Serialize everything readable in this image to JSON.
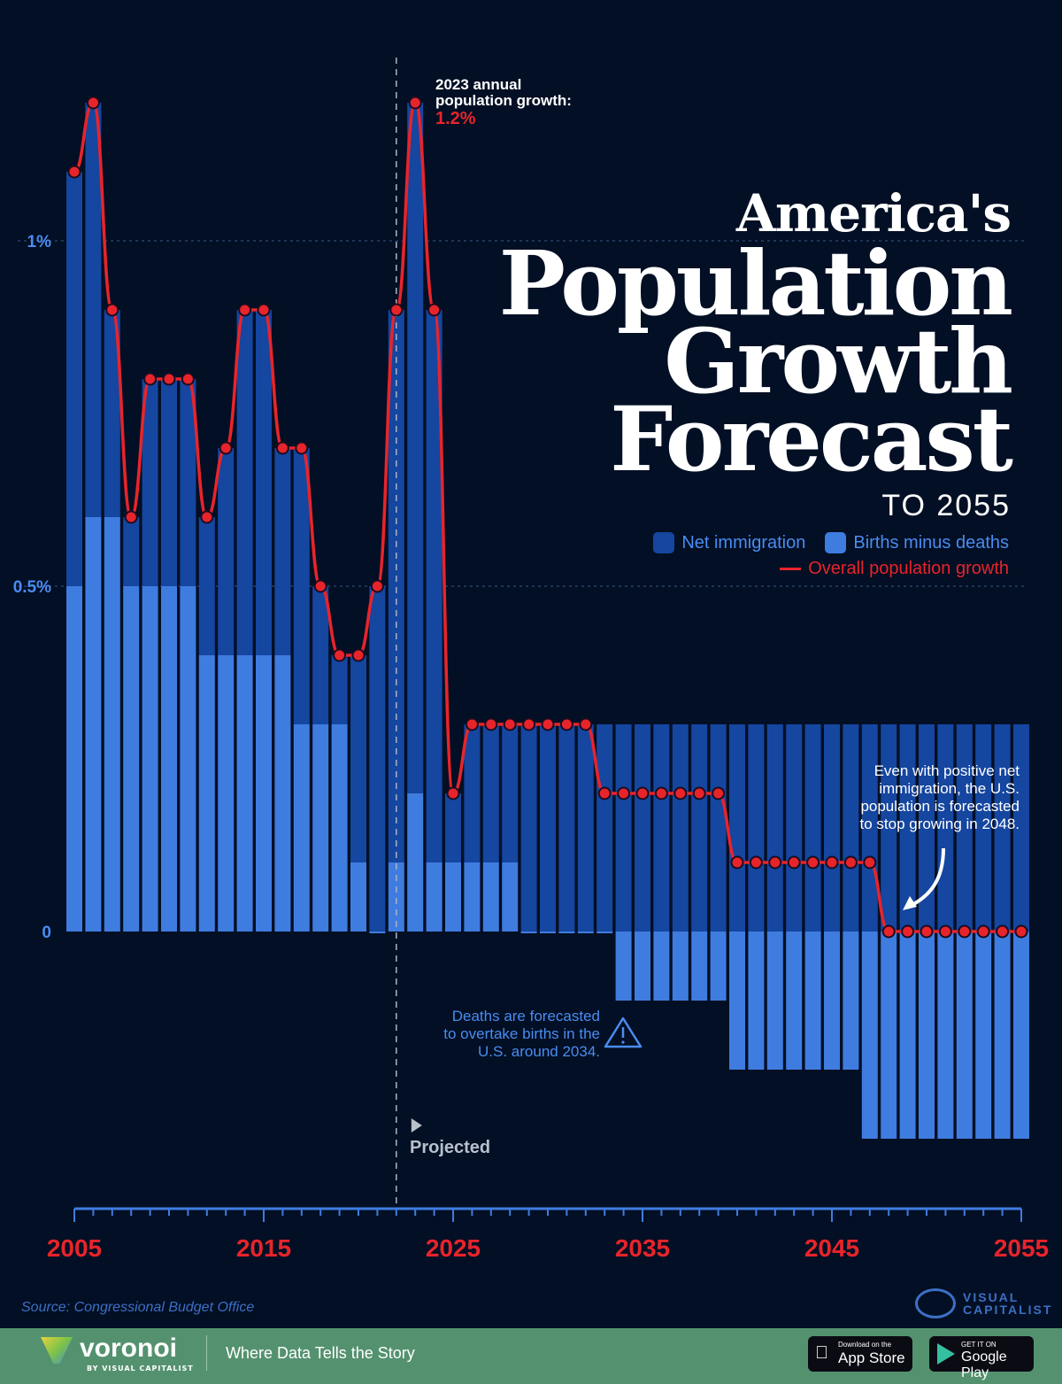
{
  "chart_data": {
    "type": "bar",
    "title": "America's Population Growth Forecast",
    "title_parts": [
      "America's",
      "Population",
      "Growth",
      "Forecast"
    ],
    "subtitle": "TO 2055",
    "x": [
      2005,
      2006,
      2007,
      2008,
      2009,
      2010,
      2011,
      2012,
      2013,
      2014,
      2015,
      2016,
      2017,
      2018,
      2019,
      2020,
      2021,
      2022,
      2023,
      2024,
      2025,
      2026,
      2027,
      2028,
      2029,
      2030,
      2031,
      2032,
      2033,
      2034,
      2035,
      2036,
      2037,
      2038,
      2039,
      2040,
      2041,
      2042,
      2043,
      2044,
      2045,
      2046,
      2047,
      2048,
      2049,
      2050,
      2051,
      2052,
      2053,
      2054,
      2055
    ],
    "series": [
      {
        "name": "Net immigration",
        "type": "bar",
        "color": "#1546a0",
        "values": [
          0.6,
          0.6,
          0.3,
          0.1,
          0.3,
          0.3,
          0.3,
          0.2,
          0.3,
          0.5,
          0.5,
          0.3,
          0.4,
          0.2,
          0.1,
          0.3,
          0.5,
          0.8,
          1.0,
          0.8,
          0.1,
          0.2,
          0.2,
          0.2,
          0.3,
          0.3,
          0.3,
          0.3,
          0.3,
          0.3,
          0.3,
          0.3,
          0.3,
          0.3,
          0.3,
          0.3,
          0.3,
          0.3,
          0.3,
          0.3,
          0.3,
          0.3,
          0.3,
          0.3,
          0.3,
          0.3,
          0.3,
          0.3,
          0.3,
          0.3,
          0.3
        ]
      },
      {
        "name": "Births minus deaths",
        "type": "bar",
        "color": "#3f7ce0",
        "values": [
          0.5,
          0.6,
          0.6,
          0.5,
          0.5,
          0.5,
          0.5,
          0.4,
          0.4,
          0.4,
          0.4,
          0.4,
          0.3,
          0.3,
          0.3,
          0.1,
          0,
          0.1,
          0.2,
          0.1,
          0.1,
          0.1,
          0.1,
          0.1,
          0,
          0,
          0,
          0,
          0,
          -0.1,
          -0.1,
          -0.1,
          -0.1,
          -0.1,
          -0.1,
          -0.2,
          -0.2,
          -0.2,
          -0.2,
          -0.2,
          -0.2,
          -0.2,
          -0.3,
          -0.3,
          -0.3,
          -0.3,
          -0.3,
          -0.3,
          -0.3,
          -0.3,
          -0.3
        ]
      },
      {
        "name": "Overall population growth",
        "type": "line",
        "color": "#e8242b",
        "values": [
          1.1,
          1.2,
          0.9,
          0.6,
          0.8,
          0.8,
          0.8,
          0.6,
          0.7,
          0.9,
          0.9,
          0.7,
          0.7,
          0.5,
          0.4,
          0.4,
          0.5,
          0.9,
          1.2,
          0.9,
          0.2,
          0.3,
          0.3,
          0.3,
          0.3,
          0.3,
          0.3,
          0.3,
          0.2,
          0.2,
          0.2,
          0.2,
          0.2,
          0.2,
          0.2,
          0.1,
          0.1,
          0.1,
          0.1,
          0.1,
          0.1,
          0.1,
          0.1,
          0,
          0,
          0,
          0,
          0,
          0,
          0,
          0
        ]
      }
    ],
    "ylim": [
      -0.3,
      1.2
    ],
    "y_ticks": [
      {
        "value": 0,
        "label": "0"
      },
      {
        "value": 0.5,
        "label": "0.5%"
      },
      {
        "value": 1,
        "label": "1%"
      }
    ],
    "x_tick_labels": [
      "2005",
      "2015",
      "2025",
      "2035",
      "2045",
      "2055"
    ],
    "projected_from": 2022,
    "projected_label": "Projected",
    "grid": "horizontal dashed at 0.5% and 1%",
    "legend_placement": "top-right",
    "annotations": {
      "peak_line1": "2023 annual",
      "peak_line2": "population growth:",
      "peak_value": "1.2%",
      "deaths": [
        "Deaths are forecasted",
        "to overtake births in the",
        "U.S. around 2034."
      ],
      "stop": [
        "Even with positive net",
        "immigration, the U.S.",
        "population is forecasted",
        "to stop growing in 2048."
      ]
    }
  },
  "footer": {
    "source": "Source: Congressional Budget Office",
    "vc_logo": "VISUAL CAPITALIST",
    "voronoi": "voronoi",
    "voronoi_by": "BY VISUAL CAPITALIST",
    "tagline": "Where Data Tells the Story",
    "appstore_small": "Download on the",
    "appstore": "App Store",
    "play_small": "GET IT ON",
    "play": "Google Play"
  }
}
